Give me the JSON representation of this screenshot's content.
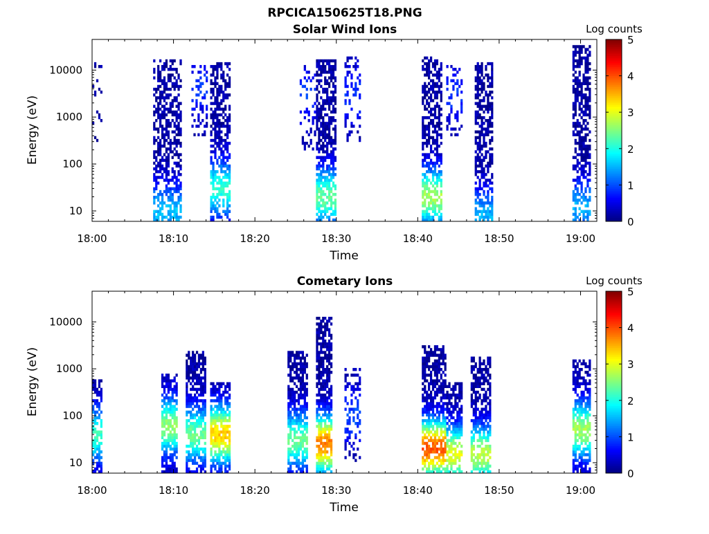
{
  "figure_title": "RPCICA150625T18.PNG",
  "chart_data": [
    {
      "type": "heatmap",
      "title": "Solar Wind Ions",
      "xlabel": "Time",
      "ylabel": "Energy (eV)",
      "y_scale": "log",
      "xlim_min": [
        0,
        62
      ],
      "ylim_eV": [
        6,
        45000
      ],
      "x_ticks": [
        {
          "min": 0,
          "label": "18:00"
        },
        {
          "min": 10,
          "label": "18:10"
        },
        {
          "min": 20,
          "label": "18:20"
        },
        {
          "min": 30,
          "label": "18:30"
        },
        {
          "min": 40,
          "label": "18:40"
        },
        {
          "min": 50,
          "label": "18:50"
        },
        {
          "min": 60,
          "label": "19:00"
        }
      ],
      "y_ticks": [
        {
          "value": 10,
          "label": "10"
        },
        {
          "value": 100,
          "label": "100"
        },
        {
          "value": 1000,
          "label": "1000"
        },
        {
          "value": 10000,
          "label": "10000"
        }
      ],
      "colorbar": {
        "label": "Log counts",
        "range": [
          0,
          5
        ],
        "ticks": [
          "0",
          "1",
          "2",
          "3",
          "4",
          "5"
        ],
        "colormap": "jet"
      },
      "events": [
        {
          "t0": 0.0,
          "t1": 1.2,
          "emin": 300,
          "emax": 15000,
          "density": 0.18,
          "peak": 0.7,
          "peak_e": 10
        },
        {
          "t0": 7.5,
          "t1": 10.8,
          "emin": 6,
          "emax": 18000,
          "density": 0.55,
          "peak": 1.4,
          "peak_e": 10
        },
        {
          "t0": 12.2,
          "t1": 14.0,
          "emin": 400,
          "emax": 12000,
          "density": 0.3,
          "peak": 0.7,
          "peak_e": 4000
        },
        {
          "t0": 14.5,
          "t1": 17.0,
          "emin": 6,
          "emax": 15000,
          "density": 0.6,
          "peak": 1.9,
          "peak_e": 30
        },
        {
          "t0": 25.5,
          "t1": 27.5,
          "emin": 200,
          "emax": 12000,
          "density": 0.25,
          "peak": 0.7,
          "peak_e": 3000
        },
        {
          "t0": 27.5,
          "t1": 29.8,
          "emin": 6,
          "emax": 18000,
          "density": 0.65,
          "peak": 2.2,
          "peak_e": 20
        },
        {
          "t0": 31.0,
          "t1": 32.8,
          "emin": 300,
          "emax": 20000,
          "density": 0.25,
          "peak": 0.7,
          "peak_e": 3000
        },
        {
          "t0": 40.5,
          "t1": 42.8,
          "emin": 6,
          "emax": 20000,
          "density": 0.6,
          "peak": 2.5,
          "peak_e": 20
        },
        {
          "t0": 43.5,
          "t1": 45.5,
          "emin": 400,
          "emax": 12000,
          "density": 0.3,
          "peak": 0.7,
          "peak_e": 3000
        },
        {
          "t0": 47.0,
          "t1": 49.2,
          "emin": 6,
          "emax": 15000,
          "density": 0.6,
          "peak": 1.3,
          "peak_e": 8
        },
        {
          "t0": 59.0,
          "t1": 61.2,
          "emin": 6,
          "emax": 35000,
          "density": 0.6,
          "peak": 1.3,
          "peak_e": 12
        }
      ]
    },
    {
      "type": "heatmap",
      "title": "Cometary Ions",
      "xlabel": "Time",
      "ylabel": "Energy (eV)",
      "y_scale": "log",
      "xlim_min": [
        0,
        62
      ],
      "ylim_eV": [
        6,
        45000
      ],
      "x_ticks": [
        {
          "min": 0,
          "label": "18:00"
        },
        {
          "min": 10,
          "label": "18:10"
        },
        {
          "min": 20,
          "label": "18:20"
        },
        {
          "min": 30,
          "label": "18:30"
        },
        {
          "min": 40,
          "label": "18:40"
        },
        {
          "min": 50,
          "label": "18:50"
        },
        {
          "min": 60,
          "label": "19:00"
        }
      ],
      "y_ticks": [
        {
          "value": 10,
          "label": "10"
        },
        {
          "value": 100,
          "label": "100"
        },
        {
          "value": 1000,
          "label": "1000"
        },
        {
          "value": 10000,
          "label": "10000"
        }
      ],
      "colorbar": {
        "label": "Log counts",
        "range": [
          0,
          5
        ],
        "ticks": [
          "0",
          "1",
          "2",
          "3",
          "4",
          "5"
        ],
        "colormap": "jet"
      },
      "events": [
        {
          "t0": 0.0,
          "t1": 1.2,
          "emin": 6,
          "emax": 600,
          "density": 0.6,
          "peak": 2.0,
          "peak_e": 40
        },
        {
          "t0": 8.5,
          "t1": 10.5,
          "emin": 6,
          "emax": 800,
          "density": 0.75,
          "peak": 2.4,
          "peak_e": 60
        },
        {
          "t0": 11.5,
          "t1": 13.8,
          "emin": 6,
          "emax": 2500,
          "density": 0.7,
          "peak": 2.2,
          "peak_e": 40
        },
        {
          "t0": 14.5,
          "t1": 17.0,
          "emin": 6,
          "emax": 500,
          "density": 0.75,
          "peak": 3.2,
          "peak_e": 40
        },
        {
          "t0": 24.0,
          "t1": 26.5,
          "emin": 6,
          "emax": 2500,
          "density": 0.7,
          "peak": 2.2,
          "peak_e": 30
        },
        {
          "t0": 27.5,
          "t1": 29.5,
          "emin": 6,
          "emax": 12000,
          "density": 0.75,
          "peak": 3.6,
          "peak_e": 25
        },
        {
          "t0": 31.0,
          "t1": 32.8,
          "emin": 10,
          "emax": 1000,
          "density": 0.3,
          "peak": 0.8,
          "peak_e": 100
        },
        {
          "t0": 40.5,
          "t1": 43.5,
          "emin": 6,
          "emax": 3000,
          "density": 0.7,
          "peak": 3.8,
          "peak_e": 20
        },
        {
          "t0": 43.5,
          "t1": 45.5,
          "emin": 6,
          "emax": 500,
          "density": 0.65,
          "peak": 2.8,
          "peak_e": 15
        },
        {
          "t0": 46.5,
          "t1": 48.8,
          "emin": 6,
          "emax": 1800,
          "density": 0.65,
          "peak": 2.6,
          "peak_e": 15
        },
        {
          "t0": 59.0,
          "t1": 61.2,
          "emin": 6,
          "emax": 1500,
          "density": 0.7,
          "peak": 2.5,
          "peak_e": 50
        }
      ]
    }
  ]
}
